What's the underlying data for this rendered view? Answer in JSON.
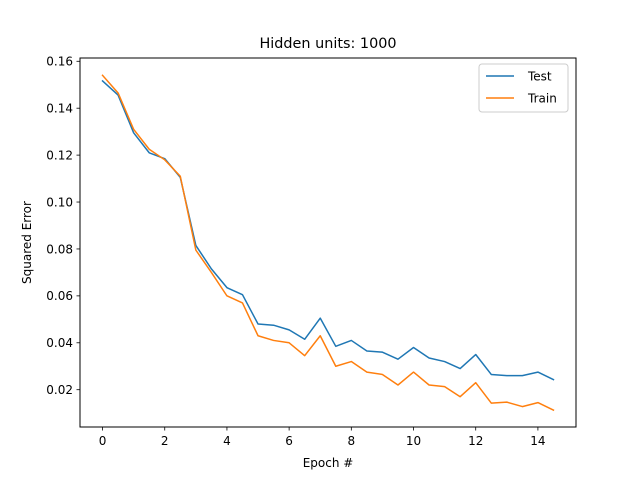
{
  "chart_data": {
    "type": "line",
    "title": "Hidden units: 1000",
    "xlabel": "Epoch #",
    "ylabel": "Squared Error",
    "xlim": [
      -0.725,
      15.225
    ],
    "ylim": [
      0.0041,
      0.1614
    ],
    "xticks": [
      0,
      2,
      4,
      6,
      8,
      10,
      12,
      14
    ],
    "xtick_labels": [
      "0",
      "2",
      "4",
      "6",
      "8",
      "10",
      "12",
      "14"
    ],
    "yticks": [
      0.02,
      0.04,
      0.06,
      0.08,
      0.1,
      0.12,
      0.14,
      0.16
    ],
    "ytick_labels": [
      "0.02",
      "0.04",
      "0.06",
      "0.08",
      "0.10",
      "0.12",
      "0.14",
      "0.16"
    ],
    "grid": false,
    "legend_position": "top-right",
    "x": [
      0,
      0.5,
      1,
      1.5,
      2,
      2.5,
      3,
      3.5,
      4,
      4.5,
      5,
      5.5,
      6,
      6.5,
      7,
      7.5,
      8,
      8.5,
      9,
      9.5,
      10,
      10.5,
      11,
      11.5,
      12,
      12.5,
      13,
      13.5,
      14,
      14.5
    ],
    "series": [
      {
        "name": "Test",
        "color": "#1f77b4",
        "values": [
          0.1516,
          0.1456,
          0.1295,
          0.121,
          0.1185,
          0.1105,
          0.0815,
          0.0715,
          0.0635,
          0.0605,
          0.048,
          0.0475,
          0.0455,
          0.0415,
          0.0505,
          0.0385,
          0.041,
          0.0365,
          0.036,
          0.033,
          0.038,
          0.0335,
          0.032,
          0.029,
          0.035,
          0.0265,
          0.026,
          0.026,
          0.0275,
          0.0243
        ]
      },
      {
        "name": "Train",
        "color": "#ff7f0e",
        "values": [
          0.154,
          0.1465,
          0.131,
          0.1225,
          0.118,
          0.111,
          0.0795,
          0.07,
          0.06,
          0.057,
          0.043,
          0.041,
          0.04,
          0.0345,
          0.043,
          0.03,
          0.032,
          0.0275,
          0.0265,
          0.022,
          0.0275,
          0.022,
          0.0213,
          0.017,
          0.023,
          0.0143,
          0.0147,
          0.0128,
          0.0145,
          0.0113
        ]
      }
    ]
  }
}
